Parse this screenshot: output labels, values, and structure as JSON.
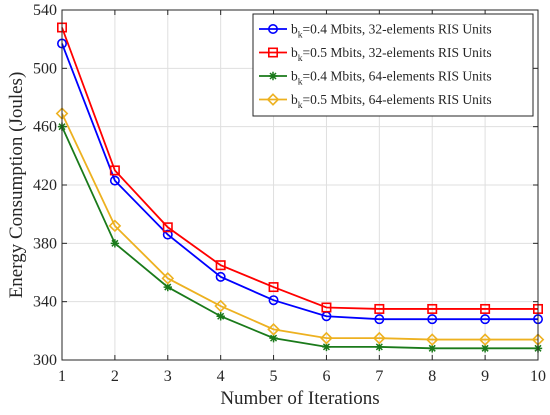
{
  "chart_data": {
    "type": "line",
    "xlabel": "Number of Iterations",
    "ylabel": "Energy Consumption (Joules)",
    "xlim": [
      1,
      10
    ],
    "ylim": [
      300,
      540
    ],
    "xticks": [
      1,
      2,
      3,
      4,
      5,
      6,
      7,
      8,
      9,
      10
    ],
    "yticks": [
      300,
      340,
      380,
      420,
      460,
      500,
      540
    ],
    "grid": true,
    "legend_position": "top-right",
    "x": [
      1,
      2,
      3,
      4,
      5,
      6,
      7,
      8,
      9,
      10
    ],
    "series": [
      {
        "label_main": "b",
        "label_sub": "k",
        "label_rest": "=0.4 Mbits, 32-elements RIS Units",
        "color": "#0000ff",
        "marker": "circle",
        "values": [
          517,
          423,
          386,
          357,
          341,
          330,
          328,
          328,
          328,
          328
        ]
      },
      {
        "label_main": "b",
        "label_sub": "k",
        "label_rest": "=0.5 Mbits, 32-elements RIS Units",
        "color": "#ff0000",
        "marker": "square",
        "values": [
          528,
          430,
          391,
          365,
          350,
          336,
          335,
          335,
          335,
          335
        ]
      },
      {
        "label_main": "b",
        "label_sub": "k",
        "label_rest": "=0.4 Mbits, 64-elements RIS Units",
        "color": "#1a7a1a",
        "marker": "asterisk",
        "values": [
          460,
          380,
          350,
          330,
          315,
          309,
          309,
          308,
          308,
          308
        ]
      },
      {
        "label_main": "b",
        "label_sub": "k",
        "label_rest": "=0.5 Mbits, 64-elements RIS Units",
        "color": "#edb120",
        "marker": "diamond",
        "values": [
          469,
          392,
          356,
          337,
          321,
          315,
          315,
          314,
          314,
          314
        ]
      }
    ]
  }
}
